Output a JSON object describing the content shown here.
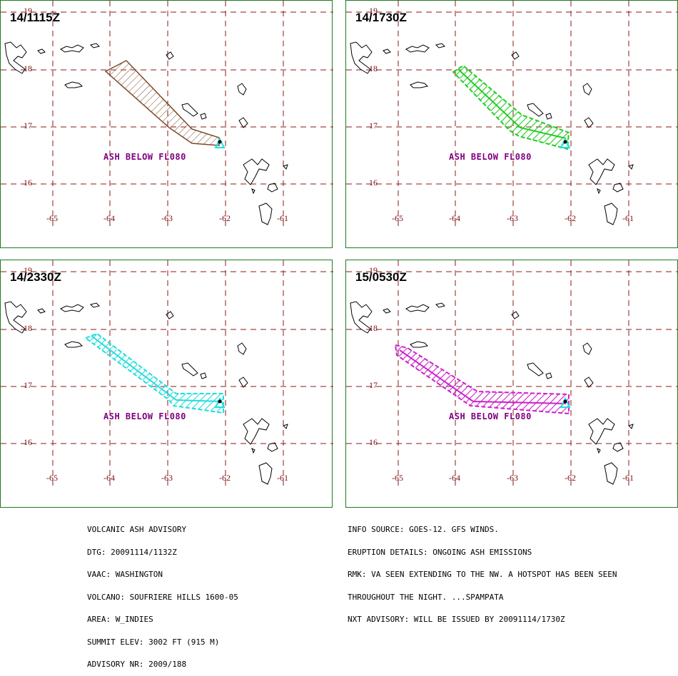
{
  "lat_labels": [
    "19",
    "18",
    "17",
    "16"
  ],
  "lon_labels": [
    "-65",
    "-64",
    "-63",
    "-62",
    "-61"
  ],
  "colors": {
    "grid": "#8b1a1a",
    "border": "#1f7a1f",
    "label": "#800080",
    "coast": "#000000"
  },
  "panels": [
    {
      "time": "14/1115Z",
      "ash_label": "ASH BELOW FL080",
      "ash_color": "#7a4a2a",
      "hatch": "fine"
    },
    {
      "time": "14/1730Z",
      "ash_label": "ASH BELOW FL080",
      "ash_color": "#22cc22",
      "hatch": "bold"
    },
    {
      "time": "14/2330Z",
      "ash_label": "ASH BELOW FL080",
      "ash_color": "#22dddd",
      "hatch": "bold"
    },
    {
      "time": "15/0530Z",
      "ash_label": "ASH BELOW FL080",
      "ash_color": "#cc22cc",
      "hatch": "bold"
    }
  ],
  "advisory_left": [
    "VOLCANIC ASH ADVISORY",
    "DTG: 20091114/1132Z",
    "VAAC: WASHINGTON",
    "VOLCANO: SOUFRIERE HILLS 1600-05",
    "AREA: W_INDIES",
    "SUMMIT ELEV: 3002 FT (915 M)",
    "ADVISORY NR: 2009/188"
  ],
  "advisory_right": [
    "INFO SOURCE: GOES-12. GFS WINDS.",
    "ERUPTION DETAILS: ONGOING ASH EMISSIONS",
    "RMK: VA SEEN EXTENDING TO THE NW. A HOTSPOT HAS BEEN SEEN",
    "THROUGHOUT THE NIGHT. ...SPAMPATA",
    "NXT ADVISORY: WILL BE ISSUED BY 20091114/1730Z"
  ]
}
